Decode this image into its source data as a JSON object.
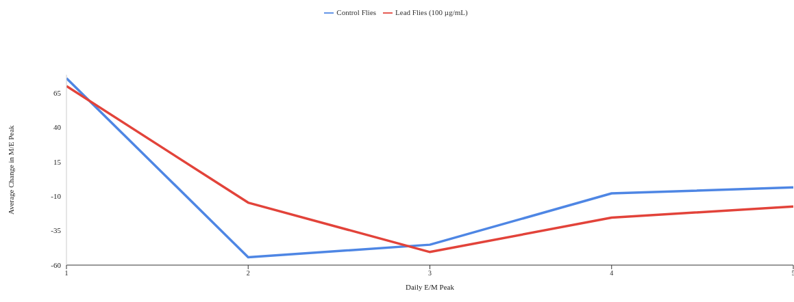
{
  "chart_data": {
    "type": "line",
    "xlabel": "Daily E/M Peak",
    "ylabel": "Average Change in M/E Peak",
    "x": [
      1,
      2,
      3,
      4,
      5
    ],
    "series": [
      {
        "name": "Control Flies",
        "color": "#4e86e4",
        "values": [
          75.5,
          -54.3,
          -45.2,
          -8,
          -3.7
        ]
      },
      {
        "name": "Lead Flies (100 µg/mL)",
        "color": "#e2433a",
        "values": [
          69.8,
          -14.7,
          -50.5,
          -25.6,
          -17.5
        ]
      }
    ],
    "xlim": [
      1,
      5
    ],
    "xticks": [
      1,
      2,
      3,
      4,
      5
    ],
    "ylim": [
      -60,
      78
    ],
    "yticks": [
      -60,
      -35,
      -10,
      15,
      40,
      65
    ],
    "grid": false,
    "legend": "top",
    "marker": "none",
    "line_style": "solid"
  }
}
